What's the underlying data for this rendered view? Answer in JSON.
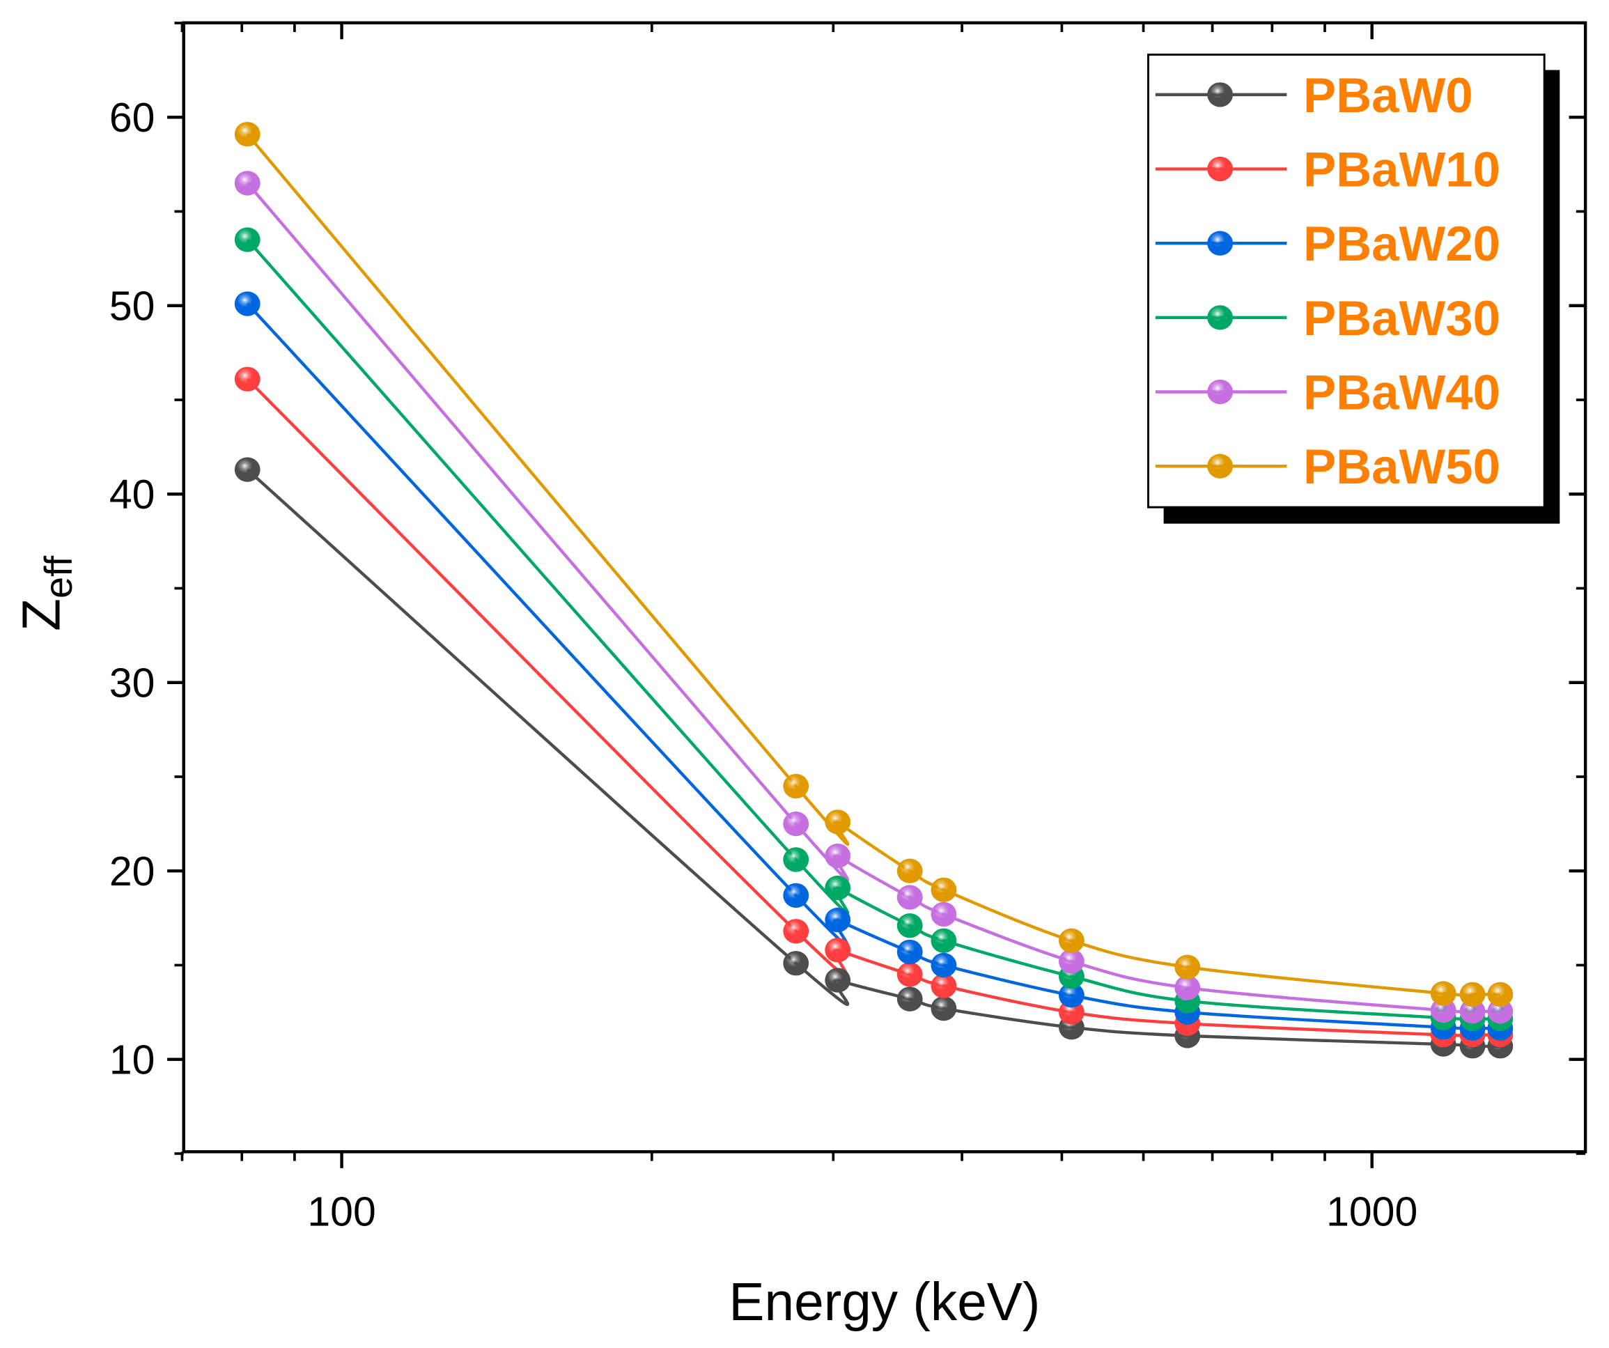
{
  "chart_data": {
    "type": "line",
    "title": "",
    "xlabel": "Energy (keV)",
    "ylabel_main": "Z",
    "ylabel_sub": "eff",
    "xscale": "log",
    "xlim": [
      70,
      1610
    ],
    "ylim": [
      5,
      65
    ],
    "xticks": [
      100,
      1000
    ],
    "xtick_labels": [
      "100",
      "1000"
    ],
    "yticks": [
      10,
      20,
      30,
      40,
      50,
      60
    ],
    "ytick_labels": [
      "10",
      "20",
      "30",
      "40",
      "50",
      "60"
    ],
    "grid": false,
    "legend_position": "top-right",
    "legend_text_color": "#ff8000",
    "x": [
      81,
      276,
      303,
      356,
      384,
      511,
      662,
      1173,
      1252,
      1332
    ],
    "series": [
      {
        "name": "PBaW0",
        "color": "#4d4d4d",
        "values": [
          41.3,
          15.1,
          14.2,
          13.2,
          12.7,
          11.7,
          11.25,
          10.8,
          10.7,
          10.7
        ]
      },
      {
        "name": "PBaW10",
        "color": "#ff3f3f",
        "values": [
          46.1,
          16.8,
          15.8,
          14.5,
          13.9,
          12.5,
          11.9,
          11.3,
          11.3,
          11.3
        ]
      },
      {
        "name": "PBaW20",
        "color": "#0066e0",
        "values": [
          50.1,
          18.7,
          17.4,
          15.7,
          15.0,
          13.4,
          12.5,
          11.7,
          11.65,
          11.65
        ]
      },
      {
        "name": "PBaW30",
        "color": "#00a865",
        "values": [
          53.5,
          20.6,
          19.1,
          17.1,
          16.3,
          14.4,
          13.1,
          12.2,
          12.15,
          12.15
        ]
      },
      {
        "name": "PBaW40",
        "color": "#c66fe0",
        "values": [
          56.5,
          22.5,
          20.8,
          18.6,
          17.7,
          15.2,
          13.8,
          12.6,
          12.55,
          12.55
        ]
      },
      {
        "name": "PBaW50",
        "color": "#e09a00",
        "values": [
          59.1,
          24.5,
          22.6,
          20.0,
          19.0,
          16.3,
          14.9,
          13.5,
          13.45,
          13.45
        ]
      }
    ]
  }
}
